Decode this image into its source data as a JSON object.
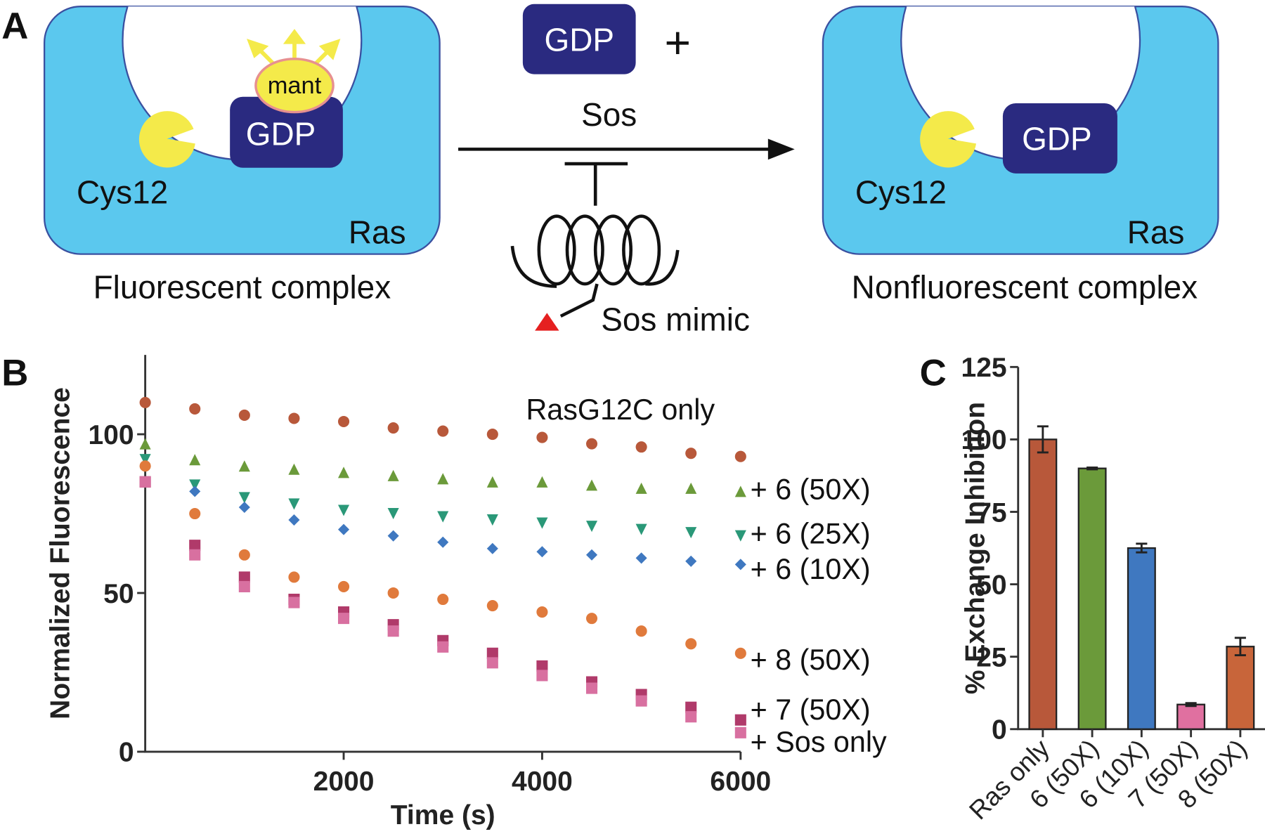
{
  "panel_a": {
    "label": "A",
    "center_gdp": "GDP",
    "plus": "+",
    "arrow_label": "Sos",
    "left": {
      "gdp": "GDP",
      "mant": "mant",
      "cys": "Cys12",
      "ras": "Ras",
      "caption": "Fluorescent complex"
    },
    "right": {
      "gdp": "GDP",
      "cys": "Cys12",
      "ras": "Ras",
      "caption": "Nonfluorescent complex"
    },
    "mimic": "Sos mimic"
  },
  "chart_data": [
    {
      "type": "scatter",
      "panel": "B",
      "xlabel": "Time (s)",
      "ylabel": "Normalized Fluorescence",
      "x": [
        0,
        500,
        1000,
        1500,
        2000,
        2500,
        3000,
        3500,
        4000,
        4500,
        5000,
        5500,
        6000
      ],
      "xlim": [
        0,
        6000
      ],
      "xticks": [
        2000,
        4000,
        6000
      ],
      "ylim": [
        0,
        125
      ],
      "yticks": [
        0,
        50,
        100
      ],
      "series": [
        {
          "name": "RasG12C only",
          "color": "#b8583a",
          "marker": "circle",
          "values": [
            110,
            108,
            106,
            105,
            104,
            102,
            101,
            100,
            99,
            97,
            96,
            94,
            93
          ]
        },
        {
          "name": "+ 6 (50X)",
          "color": "#6b9a3a",
          "marker": "triangle",
          "values": [
            97,
            92,
            90,
            89,
            88,
            87,
            86,
            85,
            85,
            84,
            83,
            83,
            82
          ]
        },
        {
          "name": "+ 6 (25X)",
          "color": "#2a9878",
          "marker": "triangle-down",
          "values": [
            92,
            84,
            80,
            78,
            76,
            75,
            74,
            73,
            72,
            71,
            70,
            69,
            68
          ]
        },
        {
          "name": "+ 6 (10X)",
          "color": "#3f78c0",
          "marker": "diamond",
          "values": [
            90,
            82,
            77,
            73,
            70,
            68,
            66,
            64,
            63,
            62,
            61,
            60,
            59
          ]
        },
        {
          "name": "+ 8 (50X)",
          "color": "#e07a3c",
          "marker": "circle",
          "values": [
            90,
            75,
            62,
            55,
            52,
            50,
            48,
            46,
            44,
            42,
            38,
            34,
            31
          ]
        },
        {
          "name": "+ 7 (50X)",
          "color": "#b03a6a",
          "marker": "square",
          "values": [
            85,
            65,
            55,
            48,
            44,
            40,
            35,
            31,
            27,
            22,
            18,
            14,
            10
          ]
        },
        {
          "name": "+ Sos only",
          "color": "#d870a0",
          "marker": "square",
          "values": [
            85,
            62,
            52,
            47,
            42,
            38,
            33,
            28,
            24,
            20,
            16,
            11,
            6
          ]
        }
      ]
    },
    {
      "type": "bar",
      "panel": "C",
      "ylabel": "% Exchange Inhibition",
      "categories": [
        "Ras only",
        "6 (50X)",
        "6 (10X)",
        "7 (50X)",
        "8 (50X)"
      ],
      "values": [
        100,
        90,
        62.5,
        8.5,
        28.5
      ],
      "errors": [
        4.5,
        0.3,
        1.5,
        0.5,
        3
      ],
      "colors": [
        "#b8583a",
        "#6b9a3a",
        "#3f78c0",
        "#e070a0",
        "#c8653a"
      ],
      "ylim": [
        0,
        125
      ],
      "yticks": [
        0,
        25,
        50,
        75,
        100,
        125
      ]
    }
  ]
}
